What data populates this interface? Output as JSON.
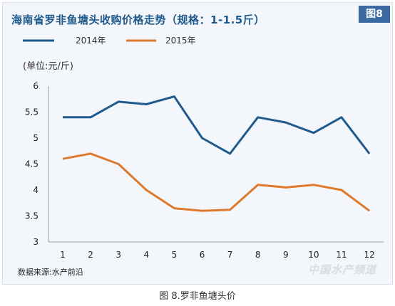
{
  "figure_badge": "图8",
  "data_source": "数据来源:水产前沿",
  "watermark": "中国水产频道",
  "caption": "图 8.罗非鱼塘头价",
  "colors": {
    "series_2014": "#1f5a8c",
    "series_2015": "#dd7a2e",
    "title": "#1f5a8c",
    "badge": "#3c6aa3"
  },
  "chart_data": {
    "type": "line",
    "title": "海南省罗非鱼塘头收购价格走势（规格：1-1.5斤）",
    "unit_label": "(单位:元/斤)",
    "xlabel": "",
    "ylabel": "",
    "x": [
      1,
      2,
      3,
      4,
      5,
      6,
      7,
      8,
      9,
      10,
      11,
      12
    ],
    "x_tick_labels": [
      "1",
      "2",
      "3",
      "4",
      "5",
      "6",
      "7",
      "8",
      "9",
      "10",
      "11",
      "12"
    ],
    "y_tick_labels": [
      "3",
      "3.5",
      "4",
      "4.5",
      "5",
      "5.5",
      "6"
    ],
    "ylim": [
      3,
      6
    ],
    "grid": false,
    "legend_position": "top-left",
    "series": [
      {
        "name": "2014年",
        "values": [
          5.4,
          5.4,
          5.7,
          5.65,
          5.8,
          5.0,
          4.7,
          5.4,
          5.3,
          5.1,
          5.4,
          4.7
        ]
      },
      {
        "name": "2015年",
        "values": [
          4.6,
          4.7,
          4.5,
          4.0,
          3.65,
          3.6,
          3.62,
          4.1,
          4.05,
          4.1,
          4.0,
          3.6
        ]
      }
    ]
  }
}
